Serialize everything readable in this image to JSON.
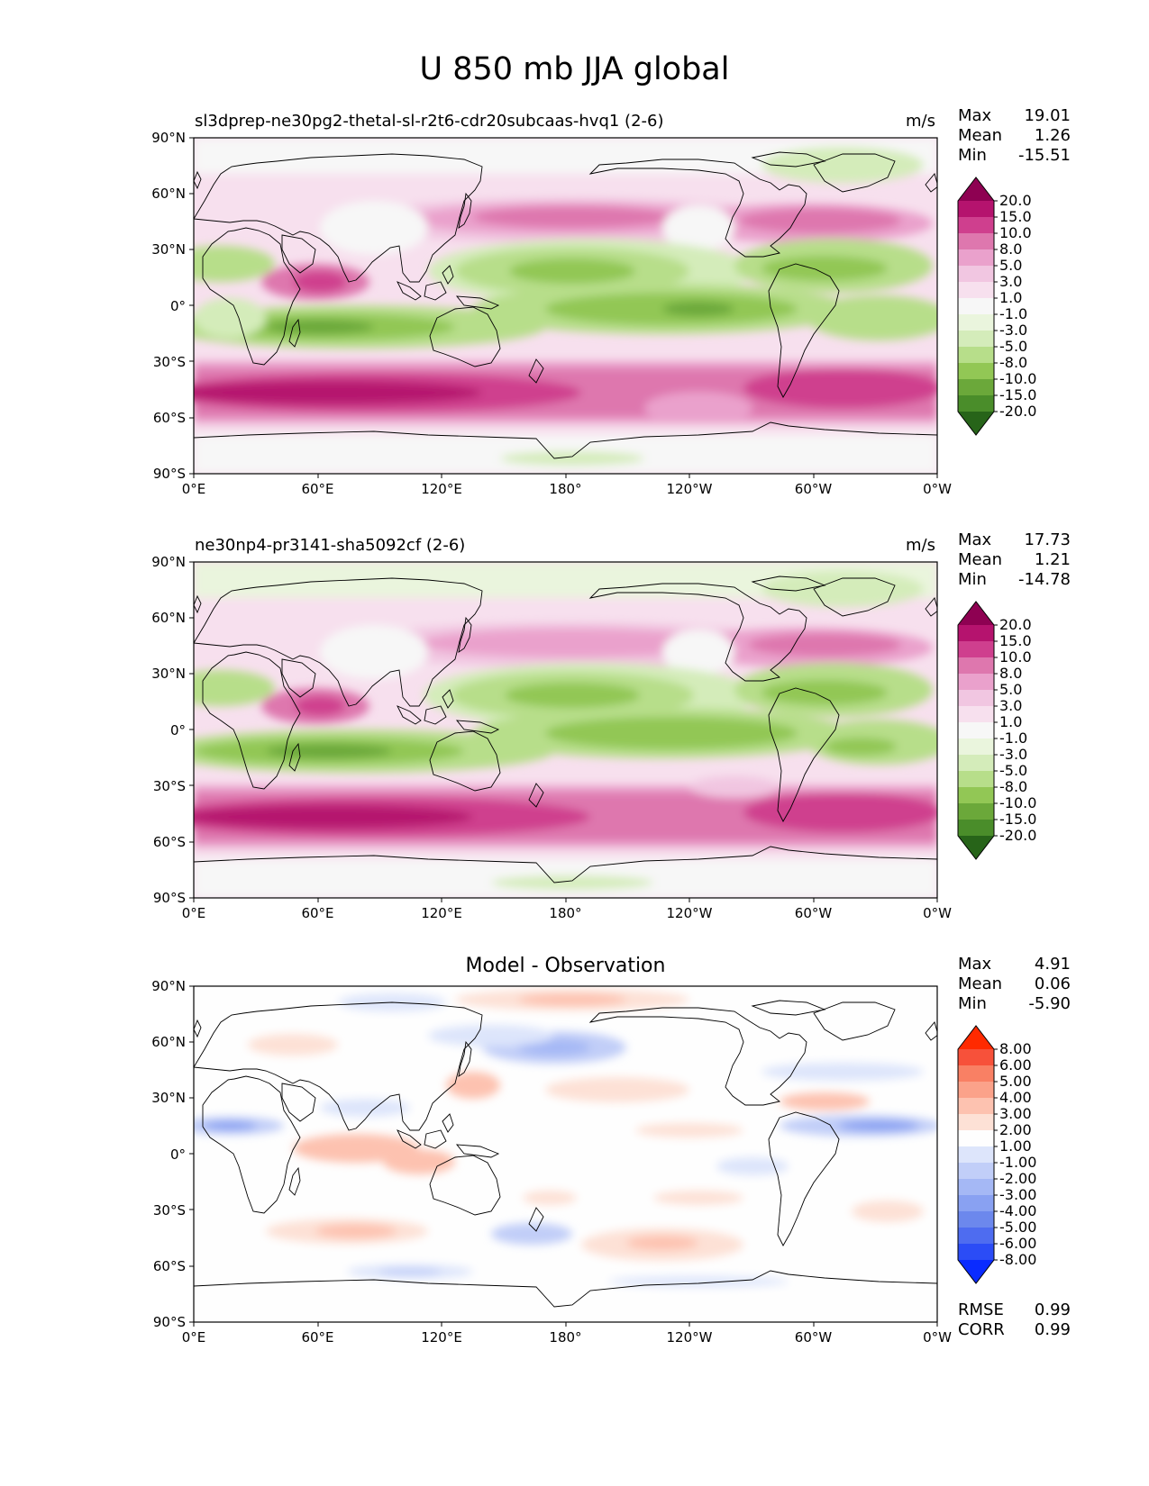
{
  "title": "U 850 mb JJA global",
  "lat_ticks": [
    "90°N",
    "60°N",
    "30°N",
    "0°",
    "30°S",
    "60°S",
    "90°S"
  ],
  "lon_ticks": [
    "0°E",
    "60°E",
    "120°E",
    "180°",
    "120°W",
    "60°W",
    "0°W"
  ],
  "panels": [
    {
      "title": "sl3dprep-ne30pg2-thetal-sl-r2t6-cdr20subcaas-hvq1 (2-6)",
      "units": "m/s",
      "stats": {
        "max_label": "Max",
        "max": "19.01",
        "mean_label": "Mean",
        "mean": "1.26",
        "min_label": "Min",
        "min": "-15.51"
      },
      "colorbar_ticks": [
        "20.0",
        "15.0",
        "10.0",
        "8.0",
        "5.0",
        "3.0",
        "1.0",
        "-1.0",
        "-3.0",
        "-5.0",
        "-8.0",
        "-10.0",
        "-15.0",
        "-20.0"
      ]
    },
    {
      "title": "ne30np4-pr3141-sha5092cf (2-6)",
      "units": "m/s",
      "stats": {
        "max_label": "Max",
        "max": "17.73",
        "mean_label": "Mean",
        "mean": "1.21",
        "min_label": "Min",
        "min": "-14.78"
      },
      "colorbar_ticks": [
        "20.0",
        "15.0",
        "10.0",
        "8.0",
        "5.0",
        "3.0",
        "1.0",
        "-1.0",
        "-3.0",
        "-5.0",
        "-8.0",
        "-10.0",
        "-15.0",
        "-20.0"
      ]
    },
    {
      "title": "Model - Observation",
      "units": "",
      "stats": {
        "max_label": "Max",
        "max": "4.91",
        "mean_label": "Mean",
        "mean": "0.06",
        "min_label": "Min",
        "min": "-5.90"
      },
      "colorbar_ticks": [
        "8.00",
        "6.00",
        "5.00",
        "4.00",
        "3.00",
        "2.00",
        "1.00",
        "-1.00",
        "-2.00",
        "-3.00",
        "-4.00",
        "-5.00",
        "-6.00",
        "-8.00"
      ],
      "rmse_label": "RMSE",
      "rmse": "0.99",
      "corr_label": "CORR",
      "corr": "0.99"
    }
  ],
  "colors": {
    "piyg": [
      "#8e0152",
      "#b5136e",
      "#cf3f8e",
      "#de77ae",
      "#eaa1cc",
      "#f1c6e1",
      "#f7e0ee",
      "#f7f7f7",
      "#eaf5dd",
      "#d4ecba",
      "#b7de8a",
      "#92c755",
      "#6ba83a",
      "#4a8d2a",
      "#276419"
    ],
    "diff": [
      "#ff2a00",
      "#f7513a",
      "#f98064",
      "#fba28a",
      "#fdc2b0",
      "#fde1d6",
      "#fefefe",
      "#dde5fb",
      "#c1cef8",
      "#a5b8f5",
      "#89a1f2",
      "#6c88ed",
      "#4e6cf0",
      "#2b4cf6",
      "#0a2bff"
    ]
  }
}
